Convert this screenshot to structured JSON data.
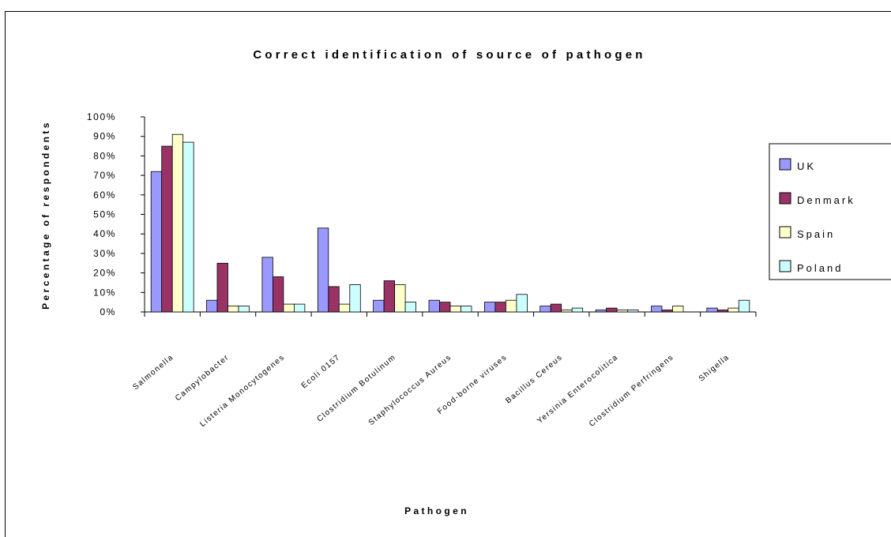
{
  "chart_data": {
    "type": "bar",
    "title": "Correct identification of source of pathogen",
    "xlabel": "Pathogen",
    "ylabel": "Percentage of respondents",
    "ylim": [
      0,
      100
    ],
    "yticks": [
      "0%",
      "10%",
      "20%",
      "30%",
      "40%",
      "50%",
      "60%",
      "70%",
      "80%",
      "90%",
      "100%"
    ],
    "categories": [
      "Salmonella",
      "Campylobacter",
      "Listeria Monocytogenes",
      "Ecoli 0157",
      "Clostridium Botulinum",
      "Staphylococcus Aureus",
      "Food-borne viruses",
      "Bacillus Cereus",
      "Yersinia Enterocolitica",
      "Clostridium Perfringens",
      "Shigella"
    ],
    "series": [
      {
        "name": "UK",
        "color": "#9999ff",
        "values": [
          72,
          6,
          28,
          43,
          6,
          6,
          5,
          3,
          1,
          3,
          2
        ]
      },
      {
        "name": "Denmark",
        "color": "#993366",
        "values": [
          85,
          25,
          18,
          13,
          16,
          5,
          5,
          4,
          2,
          1,
          1
        ]
      },
      {
        "name": "Spain",
        "color": "#ffffcc",
        "values": [
          91,
          3,
          4,
          4,
          14,
          3,
          6,
          1,
          1,
          3,
          2
        ]
      },
      {
        "name": "Poland",
        "color": "#ccffff",
        "values": [
          87,
          3,
          4,
          14,
          5,
          3,
          9,
          2,
          1,
          0,
          6
        ]
      }
    ],
    "legend_position": "right",
    "grid": false
  }
}
